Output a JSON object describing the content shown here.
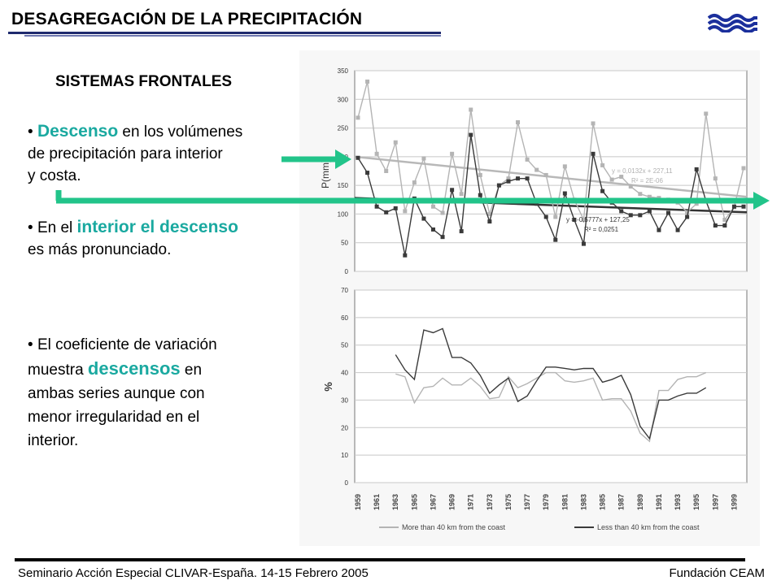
{
  "header": {
    "title": "DESAGREGACIÓN DE LA PRECIPITACIÓN"
  },
  "content": {
    "subtitle": "SISTEMAS FRONTALES",
    "b1_hl": "Descenso",
    "b1_rest1": " en los volúmenes",
    "b1_line2": "de precipitación para interior",
    "b1_line3": "y costa.",
    "b2_pre": "En el ",
    "b2_hl": "interior el descenso",
    "b2_line2": "es más pronunciado.",
    "b3_line1": "El coeficiente de variación",
    "b3_pre": "muestra ",
    "b3_hl": "descensos",
    "b3_post": " en",
    "b3_line3": "ambas series aunque con",
    "b3_line4": "menor irregularidad en el",
    "b3_line5": "interior."
  },
  "footer": {
    "left": "Seminario Acción Especial CLIVAR-España. 14-15 Febrero 2005",
    "right": "Fundación CEAM"
  },
  "colors": {
    "accent": "#1aa9a0",
    "arrow": "#22c48a",
    "title_rule": "#1f2a6e",
    "coast_series": "#b4b4b4",
    "interior_series": "#3a3a3a"
  },
  "chart_data": [
    {
      "type": "line",
      "ylabel": "P(mm)",
      "ylim": [
        0,
        350
      ],
      "yticks": [
        0,
        50,
        100,
        150,
        200,
        250,
        300,
        350
      ],
      "x": [
        1959,
        1960,
        1961,
        1962,
        1963,
        1964,
        1965,
        1966,
        1967,
        1968,
        1969,
        1970,
        1971,
        1972,
        1973,
        1974,
        1975,
        1976,
        1977,
        1978,
        1979,
        1980,
        1981,
        1982,
        1983,
        1984,
        1985,
        1986,
        1987,
        1988,
        1989,
        1990,
        1991,
        1992,
        1993,
        1994,
        1995,
        1996,
        1997,
        1998,
        1999,
        2000
      ],
      "series": [
        {
          "values": [
            268,
            331,
            205,
            175,
            225,
            105,
            155,
            197,
            113,
            102,
            205,
            135,
            282,
            168,
            100,
            150,
            162,
            260,
            195,
            177,
            168,
            95,
            183,
            125,
            90,
            258,
            185,
            160,
            165,
            148,
            135,
            130,
            128,
            125,
            120,
            103,
            118,
            275,
            162,
            90,
            112,
            180
          ]
        },
        {
          "values": [
            198,
            172,
            113,
            103,
            110,
            28,
            127,
            92,
            73,
            60,
            142,
            70,
            238,
            133,
            87,
            150,
            157,
            162,
            162,
            118,
            95,
            55,
            136,
            90,
            48,
            205,
            140,
            120,
            105,
            98,
            98,
            105,
            72,
            102,
            72,
            95,
            178,
            123,
            80,
            80,
            113,
            113
          ]
        }
      ],
      "trendlines": [
        {
          "equation": "y = 0,0132x + 227,11",
          "r2": "R² = 2E-06",
          "from": 200,
          "to": 130
        },
        {
          "equation": "y = -0,5777x + 127,25",
          "r2": "R² = 0,0251",
          "from": 128,
          "to": 103
        }
      ]
    },
    {
      "type": "line",
      "ylabel": "%",
      "ylim": [
        0,
        70
      ],
      "yticks": [
        0,
        10,
        20,
        30,
        40,
        50,
        60,
        70
      ],
      "x": [
        1959,
        1961,
        1963,
        1965,
        1967,
        1969,
        1971,
        1973,
        1975,
        1977,
        1979,
        1981,
        1983,
        1985,
        1987,
        1989,
        1991,
        1993,
        1995,
        1997,
        1999
      ],
      "x_tick_labels": [
        "1959",
        "1961",
        "1963",
        "1965",
        "1967",
        "1969",
        "1971",
        "1973",
        "1975",
        "1977",
        "1979",
        "1981",
        "1983",
        "1985",
        "1987",
        "1989",
        "1991",
        "1993",
        "1995",
        "1997",
        "1999"
      ],
      "series": [
        {
          "name": "More than 40 km from the coast",
          "x": [
            1963,
            1964,
            1965,
            1966,
            1967,
            1968,
            1969,
            1970,
            1971,
            1972,
            1973,
            1974,
            1975,
            1976,
            1977,
            1978,
            1979,
            1980,
            1981,
            1982,
            1983,
            1984,
            1985,
            1986,
            1987,
            1988,
            1989,
            1990,
            1991,
            1992,
            1993,
            1994,
            1995,
            1996
          ],
          "values": [
            39.5,
            38.5,
            29,
            34.5,
            35,
            38,
            35.5,
            35.5,
            38,
            35,
            30.5,
            31,
            38.5,
            34.5,
            36,
            38,
            40,
            40,
            37,
            36.5,
            37,
            38,
            30,
            30.5,
            30.5,
            26,
            18,
            15,
            33.5,
            33.5,
            37.5,
            38.5,
            38.5,
            40
          ]
        },
        {
          "name": "Less than 40 km from the coast",
          "x": [
            1963,
            1964,
            1965,
            1966,
            1967,
            1968,
            1969,
            1970,
            1971,
            1972,
            1973,
            1974,
            1975,
            1976,
            1977,
            1978,
            1979,
            1980,
            1981,
            1982,
            1983,
            1984,
            1985,
            1986,
            1987,
            1988,
            1989,
            1990,
            1991,
            1992,
            1993,
            1994,
            1995,
            1996
          ],
          "values": [
            46.5,
            41,
            37.5,
            55.5,
            54.5,
            56,
            45.5,
            45.5,
            43.5,
            39,
            32.5,
            35.5,
            38,
            29.5,
            31.5,
            37,
            42,
            42,
            41.5,
            41,
            41.5,
            41.5,
            36.5,
            37.5,
            39,
            32,
            20.5,
            16,
            30,
            30,
            31.5,
            32.5,
            32.5,
            34.5
          ]
        }
      ]
    }
  ]
}
